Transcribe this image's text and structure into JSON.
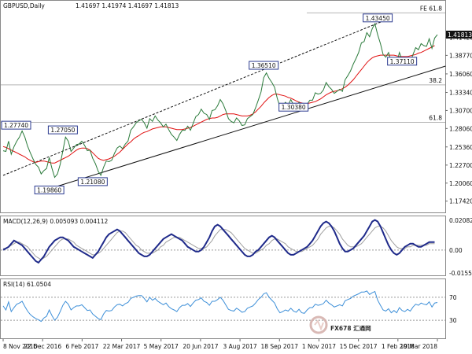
{
  "chart_data": {
    "type": "line",
    "title": "GBPUSD,Daily",
    "ohlc_header": "1.41697 1.41974 1.41697 1.41813",
    "last_price": "1.41813",
    "x_ticks": [
      "8 Nov 2016",
      "22 Dec 2016",
      "6 Feb 2017",
      "22 Mar 2017",
      "5 May 2017",
      "20 Jun 2017",
      "3 Aug 2017",
      "18 Sep 2017",
      "1 Nov 2017",
      "15 Dec 2017",
      "1 Feb 2018",
      "19 Mar 2018"
    ],
    "price_axis": {
      "ylim": [
        1.16,
        1.455
      ],
      "ticks": [
        "1.41420",
        "1.38770",
        "1.36060",
        "1.33340",
        "1.30700",
        "1.28060",
        "1.25360",
        "1.22700",
        "1.20060",
        "1.17420"
      ]
    },
    "price_series": [
      1.248,
      1.247,
      1.262,
      1.243,
      1.254,
      1.262,
      1.268,
      1.277,
      1.268,
      1.255,
      1.245,
      1.236,
      1.228,
      1.224,
      1.214,
      1.219,
      1.222,
      1.238,
      1.222,
      1.209,
      1.214,
      1.228,
      1.248,
      1.268,
      1.262,
      1.247,
      1.252,
      1.257,
      1.258,
      1.262,
      1.256,
      1.248,
      1.249,
      1.237,
      1.229,
      1.218,
      1.212,
      1.224,
      1.233,
      1.232,
      1.234,
      1.244,
      1.252,
      1.255,
      1.251,
      1.258,
      1.262,
      1.278,
      1.283,
      1.289,
      1.292,
      1.294,
      1.289,
      1.281,
      1.295,
      1.291,
      1.299,
      1.293,
      1.289,
      1.283,
      1.287,
      1.279,
      1.272,
      1.268,
      1.263,
      1.272,
      1.278,
      1.278,
      1.284,
      1.278,
      1.288,
      1.298,
      1.301,
      1.309,
      1.303,
      1.301,
      1.294,
      1.307,
      1.308,
      1.314,
      1.323,
      1.317,
      1.307,
      1.295,
      1.291,
      1.289,
      1.296,
      1.292,
      1.285,
      1.286,
      1.295,
      1.298,
      1.301,
      1.311,
      1.322,
      1.334,
      1.355,
      1.362,
      1.354,
      1.348,
      1.341,
      1.325,
      1.312,
      1.314,
      1.319,
      1.315,
      1.323,
      1.315,
      1.311,
      1.319,
      1.309,
      1.307,
      1.316,
      1.322,
      1.322,
      1.333,
      1.331,
      1.332,
      1.337,
      1.348,
      1.342,
      1.338,
      1.332,
      1.335,
      1.338,
      1.335,
      1.352,
      1.358,
      1.365,
      1.375,
      1.383,
      1.392,
      1.406,
      1.408,
      1.421,
      1.415,
      1.427,
      1.434,
      1.418,
      1.405,
      1.389,
      1.385,
      1.392,
      1.378,
      1.384,
      1.376,
      1.392,
      1.381,
      1.377,
      1.383,
      1.378,
      1.389,
      1.399,
      1.396,
      1.405,
      1.402,
      1.401,
      1.412,
      1.398,
      1.413,
      1.418
    ],
    "ma_series": [
      1.254,
      1.253,
      1.251,
      1.249,
      1.247,
      1.245,
      1.243,
      1.241,
      1.239,
      1.236,
      1.234,
      1.232,
      1.231,
      1.232,
      1.233,
      1.233,
      1.232,
      1.231,
      1.23,
      1.23,
      1.232,
      1.234,
      1.236,
      1.238,
      1.24,
      1.243,
      1.246,
      1.249,
      1.251,
      1.252,
      1.252,
      1.251,
      1.249,
      1.245,
      1.241,
      1.237,
      1.235,
      1.234,
      1.235,
      1.236,
      1.238,
      1.24,
      1.243,
      1.246,
      1.25,
      1.254,
      1.258,
      1.261,
      1.265,
      1.268,
      1.27,
      1.273,
      1.275,
      1.276,
      1.278,
      1.28,
      1.281,
      1.282,
      1.283,
      1.283,
      1.283,
      1.282,
      1.281,
      1.28,
      1.279,
      1.279,
      1.279,
      1.28,
      1.281,
      1.282,
      1.284,
      1.286,
      1.288,
      1.29,
      1.292,
      1.294,
      1.295,
      1.296,
      1.296,
      1.297,
      1.299,
      1.301,
      1.302,
      1.302,
      1.302,
      1.302,
      1.301,
      1.3,
      1.299,
      1.299,
      1.299,
      1.3,
      1.302,
      1.305,
      1.309,
      1.313,
      1.318,
      1.322,
      1.326,
      1.329,
      1.331,
      1.331,
      1.33,
      1.329,
      1.328,
      1.326,
      1.325,
      1.323,
      1.321,
      1.319,
      1.318,
      1.317,
      1.317,
      1.318,
      1.319,
      1.32,
      1.322,
      1.324,
      1.327,
      1.33,
      1.332,
      1.334,
      1.335,
      1.336,
      1.337,
      1.339,
      1.341,
      1.344,
      1.348,
      1.352,
      1.357,
      1.362,
      1.367,
      1.372,
      1.377,
      1.381,
      1.384,
      1.386,
      1.387,
      1.388,
      1.388,
      1.388,
      1.388,
      1.388,
      1.388,
      1.387,
      1.386,
      1.386,
      1.386,
      1.386,
      1.387,
      1.388,
      1.389,
      1.391,
      1.392,
      1.394,
      1.396,
      1.398,
      1.4,
      1.402
    ],
    "levels": [
      {
        "label": "FE 61.8",
        "value": 1.45
      },
      {
        "label": "38.2",
        "value": 1.3445
      },
      {
        "label": "61.8",
        "value": 1.2896
      }
    ],
    "annotations": [
      {
        "text": "1.27740",
        "x": 0,
        "y": 1.2774
      },
      {
        "text": "1.19860",
        "x": 17,
        "y": 1.1986
      },
      {
        "text": "1.27050",
        "x": 22,
        "y": 1.2705
      },
      {
        "text": "1.21080",
        "x": 33,
        "y": 1.2108
      },
      {
        "text": "1.36510",
        "x": 96,
        "y": 1.3651
      },
      {
        "text": "1.30380",
        "x": 107,
        "y": 1.3038
      },
      {
        "text": "1.43450",
        "x": 138,
        "y": 1.4345
      },
      {
        "text": "1.37110",
        "x": 147,
        "y": 1.3711
      }
    ],
    "trendlines": [
      {
        "x1": 0,
        "y1": 1.212,
        "x2": 140,
        "y2": 1.438,
        "style": "dashed"
      },
      {
        "x1": 20,
        "y1": 1.196,
        "x2": 163,
        "y2": 1.372,
        "style": "solid"
      }
    ],
    "macd": {
      "title": "MACD(12,26,9) 0.005093 0.004112",
      "ylim": [
        -0.0155,
        0.0208
      ],
      "ticks": [
        "0.020823",
        "0.00",
        "-0.015578"
      ],
      "macd": [
        0,
        0.001,
        0.002,
        0.004,
        0.006,
        0.005,
        0.004,
        0.003,
        0.001,
        -0.001,
        -0.003,
        -0.005,
        -0.007,
        -0.008,
        -0.006,
        -0.004,
        -0.001,
        0.002,
        0.004,
        0.006,
        0.007,
        0.008,
        0.008,
        0.007,
        0.006,
        0.004,
        0.002,
        0.001,
        0,
        -0.001,
        -0.002,
        -0.003,
        -0.004,
        -0.005,
        -0.003,
        -0.001,
        0.002,
        0.005,
        0.008,
        0.01,
        0.011,
        0.012,
        0.013,
        0.012,
        0.01,
        0.008,
        0.006,
        0.004,
        0.002,
        0,
        -0.002,
        -0.003,
        -0.004,
        -0.004,
        -0.003,
        -0.001,
        0.001,
        0.003,
        0.005,
        0.007,
        0.008,
        0.009,
        0.01,
        0.009,
        0.008,
        0.007,
        0.006,
        0.004,
        0.002,
        0.001,
        0,
        -0.001,
        -0.001,
        0,
        0.002,
        0.005,
        0.008,
        0.012,
        0.015,
        0.016,
        0.015,
        0.013,
        0.011,
        0.009,
        0.007,
        0.005,
        0.003,
        0.001,
        -0.001,
        -0.003,
        -0.004,
        -0.004,
        -0.003,
        -0.001,
        0,
        0.002,
        0.004,
        0.006,
        0.008,
        0.009,
        0.008,
        0.006,
        0.004,
        0.002,
        0,
        -0.002,
        -0.003,
        -0.003,
        -0.002,
        -0.001,
        0,
        0.001,
        0.002,
        0.004,
        0.006,
        0.009,
        0.012,
        0.015,
        0.017,
        0.018,
        0.017,
        0.015,
        0.012,
        0.008,
        0.004,
        0.001,
        -0.001,
        -0.001,
        0,
        0.001,
        0.003,
        0.005,
        0.007,
        0.009,
        0.012,
        0.015,
        0.018,
        0.019,
        0.018,
        0.015,
        0.011,
        0.007,
        0.003,
        0,
        -0.002,
        -0.003,
        -0.002,
        0,
        0.002,
        0.003,
        0.004,
        0.004,
        0.003,
        0.002,
        0.002,
        0.003,
        0.004,
        0.005,
        0.005,
        0.005
      ],
      "signal": [
        0.001,
        0.001,
        0.002,
        0.003,
        0.004,
        0.005,
        0.005,
        0.004,
        0.003,
        0.002,
        0,
        -0.002,
        -0.004,
        -0.005,
        -0.006,
        -0.005,
        -0.004,
        -0.002,
        0,
        0.002,
        0.004,
        0.006,
        0.007,
        0.007,
        0.007,
        0.006,
        0.005,
        0.003,
        0.002,
        0.001,
        0,
        -0.001,
        -0.002,
        -0.003,
        -0.003,
        -0.002,
        -0.001,
        0.001,
        0.003,
        0.005,
        0.007,
        0.009,
        0.011,
        0.012,
        0.012,
        0.011,
        0.009,
        0.007,
        0.005,
        0.003,
        0.002,
        0,
        -0.001,
        -0.002,
        -0.002,
        -0.002,
        -0.001,
        0,
        0.002,
        0.003,
        0.005,
        0.006,
        0.007,
        0.008,
        0.008,
        0.008,
        0.007,
        0.006,
        0.005,
        0.004,
        0.003,
        0.002,
        0.001,
        0.001,
        0.001,
        0.002,
        0.004,
        0.006,
        0.009,
        0.011,
        0.013,
        0.013,
        0.013,
        0.012,
        0.011,
        0.009,
        0.007,
        0.005,
        0.003,
        0.001,
        0,
        -0.001,
        -0.002,
        -0.002,
        -0.001,
        0,
        0.001,
        0.003,
        0.004,
        0.006,
        0.007,
        0.007,
        0.006,
        0.005,
        0.004,
        0.002,
        0.001,
        0,
        -0.001,
        -0.001,
        -0.001,
        0,
        0.001,
        0.002,
        0.003,
        0.005,
        0.007,
        0.01,
        0.012,
        0.014,
        0.015,
        0.015,
        0.014,
        0.012,
        0.01,
        0.007,
        0.005,
        0.003,
        0.002,
        0.002,
        0.002,
        0.003,
        0.004,
        0.006,
        0.008,
        0.01,
        0.012,
        0.014,
        0.015,
        0.015,
        0.014,
        0.012,
        0.009,
        0.006,
        0.004,
        0.002,
        0.001,
        0.001,
        0.001,
        0.002,
        0.002,
        0.003,
        0.003,
        0.003,
        0.003,
        0.003,
        0.003,
        0.004,
        0.004,
        0.004
      ]
    },
    "rsi": {
      "title": "RSI(14) 61.0504",
      "ylim": [
        0,
        100
      ],
      "ticks": [
        "70",
        "30"
      ],
      "values": [
        55,
        48,
        62,
        45,
        52,
        58,
        60,
        63,
        54,
        46,
        40,
        36,
        33,
        31,
        28,
        34,
        37,
        48,
        38,
        30,
        35,
        45,
        56,
        63,
        58,
        48,
        52,
        55,
        55,
        57,
        52,
        47,
        48,
        41,
        37,
        33,
        31,
        41,
        47,
        46,
        47,
        53,
        57,
        58,
        55,
        59,
        61,
        68,
        70,
        72,
        73,
        73,
        68,
        62,
        70,
        65,
        68,
        63,
        60,
        57,
        60,
        54,
        50,
        48,
        45,
        52,
        56,
        56,
        59,
        54,
        60,
        65,
        66,
        69,
        63,
        61,
        56,
        63,
        63,
        66,
        70,
        65,
        57,
        49,
        47,
        46,
        51,
        48,
        44,
        45,
        51,
        53,
        55,
        60,
        66,
        70,
        76,
        78,
        70,
        65,
        60,
        50,
        43,
        45,
        48,
        46,
        51,
        46,
        44,
        49,
        43,
        42,
        48,
        52,
        52,
        58,
        56,
        57,
        59,
        65,
        60,
        57,
        53,
        55,
        57,
        55,
        64,
        66,
        68,
        72,
        74,
        76,
        79,
        79,
        81,
        75,
        78,
        80,
        65,
        56,
        48,
        46,
        50,
        43,
        47,
        43,
        52,
        47,
        45,
        49,
        46,
        53,
        58,
        56,
        60,
        58,
        57,
        62,
        53,
        60,
        61
      ]
    }
  },
  "watermark": "FX678 汇通网"
}
